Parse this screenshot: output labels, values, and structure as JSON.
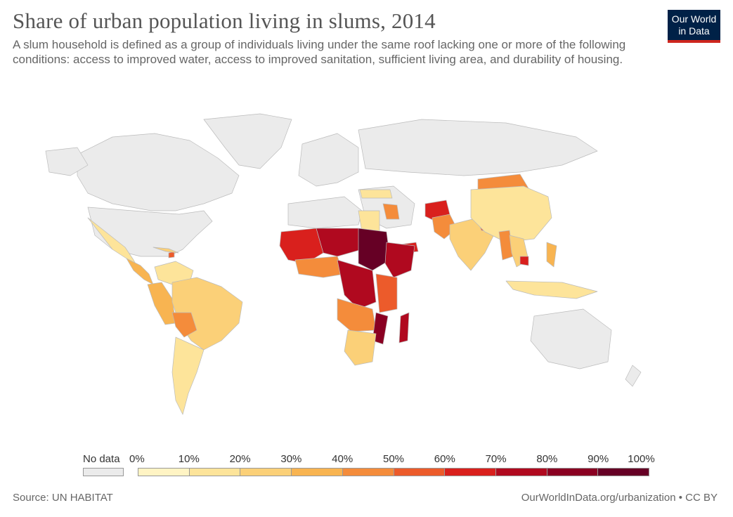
{
  "header": {
    "title": "Share of urban population living in slums, 2014",
    "subtitle": "A slum household is defined as a group of individuals living under the same roof lacking one or more of the following conditions: access to improved water, access to improved sanitation, sufficient living area, and durability of housing.",
    "logo_line1": "Our World",
    "logo_line2": "in Data"
  },
  "legend": {
    "no_data_label": "No data",
    "no_data_color": "#ebebeb",
    "ticks": [
      "0%",
      "10%",
      "20%",
      "30%",
      "40%",
      "50%",
      "60%",
      "70%",
      "80%",
      "90%",
      "100%"
    ],
    "colors": [
      "#fff4c4",
      "#fde49a",
      "#fbd078",
      "#f8b451",
      "#f48c3b",
      "#ec5b2b",
      "#d9201d",
      "#b0091f",
      "#8a0022",
      "#660025"
    ]
  },
  "footer": {
    "source": "Source: UN HABITAT",
    "url_license": "OurWorldInData.org/urbanization • CC BY"
  },
  "map": {
    "land_no_data_color": "#ebebeb",
    "border_color": "#bbbbbb"
  }
}
